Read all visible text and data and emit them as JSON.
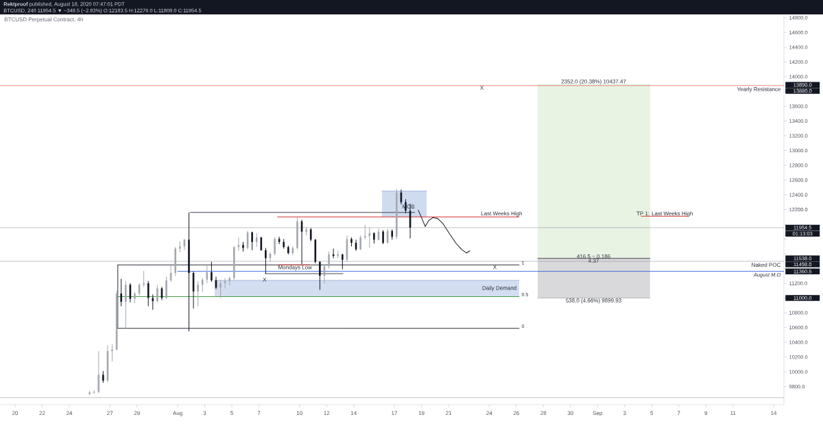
{
  "chart_data": {
    "type": "candlestick",
    "title": "BTCUSD Perpetual Contract, 4h",
    "subtitle": "BTCUSD, 240  11954.5 ▼ −348.5 (−2.83%) O:12183.5 H:12276.0 L:11808.0 C:11954.5",
    "x": [
      "2020-07-25T12:00",
      "2020-07-25T20:00",
      "2020-07-26T04:00",
      "2020-07-26T12:00",
      "2020-07-26T20:00",
      "2020-07-27T04:00",
      "2020-07-27T12:00",
      "2020-07-27T20:00",
      "2020-07-28T04:00",
      "2020-07-28T12:00",
      "2020-07-28T20:00",
      "2020-07-29T04:00",
      "2020-07-29T12:00",
      "2020-07-29T20:00",
      "2020-07-30T04:00",
      "2020-07-30T12:00",
      "2020-07-30T20:00",
      "2020-07-31T04:00",
      "2020-07-31T12:00",
      "2020-07-31T20:00",
      "2020-08-01T04:00",
      "2020-08-01T12:00",
      "2020-08-01T20:00",
      "2020-08-02T04:00",
      "2020-08-02T12:00",
      "2020-08-02T20:00",
      "2020-08-03T04:00",
      "2020-08-03T12:00",
      "2020-08-03T20:00",
      "2020-08-04T04:00",
      "2020-08-04T12:00",
      "2020-08-04T20:00",
      "2020-08-05T04:00",
      "2020-08-05T12:00",
      "2020-08-05T20:00",
      "2020-08-06T04:00",
      "2020-08-06T12:00",
      "2020-08-06T20:00",
      "2020-08-07T04:00",
      "2020-08-07T12:00",
      "2020-08-07T20:00",
      "2020-08-08T04:00",
      "2020-08-08T12:00",
      "2020-08-08T20:00",
      "2020-08-09T04:00",
      "2020-08-09T12:00",
      "2020-08-09T20:00",
      "2020-08-10T04:00",
      "2020-08-10T12:00",
      "2020-08-10T20:00",
      "2020-08-11T04:00",
      "2020-08-11T12:00",
      "2020-08-11T20:00",
      "2020-08-12T04:00",
      "2020-08-12T12:00",
      "2020-08-12T20:00",
      "2020-08-13T04:00",
      "2020-08-13T12:00",
      "2020-08-13T20:00",
      "2020-08-14T04:00",
      "2020-08-14T12:00",
      "2020-08-14T20:00",
      "2020-08-15T04:00",
      "2020-08-15T12:00",
      "2020-08-15T20:00",
      "2020-08-16T04:00",
      "2020-08-16T12:00",
      "2020-08-16T20:00",
      "2020-08-17T04:00",
      "2020-08-17T12:00",
      "2020-08-17T20:00",
      "2020-08-18T04:00"
    ],
    "ohlc": [
      [
        9700,
        9740,
        9680,
        9720
      ],
      [
        9720,
        9750,
        9700,
        9730
      ],
      [
        9730,
        10280,
        9710,
        9960
      ],
      [
        9960,
        10010,
        9850,
        9880
      ],
      [
        9880,
        10360,
        9860,
        10280
      ],
      [
        10280,
        10370,
        10140,
        10300
      ],
      [
        10300,
        11100,
        10290,
        11060
      ],
      [
        11060,
        11260,
        10890,
        10950
      ],
      [
        10950,
        11230,
        10590,
        11180
      ],
      [
        11180,
        11200,
        10940,
        10990
      ],
      [
        10990,
        11080,
        10930,
        11060
      ],
      [
        11060,
        11200,
        11030,
        11180
      ],
      [
        11180,
        11370,
        11150,
        11200
      ],
      [
        11200,
        11230,
        10890,
        11000
      ],
      [
        11000,
        11050,
        10840,
        10960
      ],
      [
        10960,
        11180,
        10940,
        11130
      ],
      [
        11130,
        11150,
        10970,
        11000
      ],
      [
        11000,
        11290,
        10990,
        11240
      ],
      [
        11240,
        11460,
        11220,
        11340
      ],
      [
        11340,
        11690,
        11300,
        11670
      ],
      [
        11670,
        11770,
        11620,
        11700
      ],
      [
        11700,
        11800,
        11650,
        11790
      ],
      [
        11790,
        12160,
        10550,
        11340
      ],
      [
        11340,
        11360,
        10860,
        11090
      ],
      [
        11090,
        11230,
        10890,
        11180
      ],
      [
        11180,
        11270,
        11080,
        11250
      ],
      [
        11250,
        11460,
        11200,
        11350
      ],
      [
        11350,
        11490,
        11220,
        11240
      ],
      [
        11240,
        11290,
        11120,
        11140
      ],
      [
        11140,
        11240,
        11000,
        11200
      ],
      [
        11200,
        11270,
        11130,
        11230
      ],
      [
        11230,
        11290,
        11170,
        11270
      ],
      [
        11270,
        11700,
        11250,
        11690
      ],
      [
        11690,
        11820,
        11640,
        11720
      ],
      [
        11720,
        11760,
        11630,
        11680
      ],
      [
        11680,
        11910,
        11660,
        11890
      ],
      [
        11890,
        11900,
        11650,
        11760
      ],
      [
        11760,
        11880,
        11690,
        11820
      ],
      [
        11820,
        11830,
        11640,
        11650
      ],
      [
        11650,
        11680,
        11330,
        11540
      ],
      [
        11540,
        11620,
        11490,
        11600
      ],
      [
        11600,
        11820,
        11580,
        11800
      ],
      [
        11800,
        11830,
        11730,
        11760
      ],
      [
        11760,
        11800,
        11670,
        11690
      ],
      [
        11690,
        11710,
        11590,
        11610
      ],
      [
        11610,
        11700,
        11580,
        11680
      ],
      [
        11680,
        12110,
        11660,
        12040
      ],
      [
        12040,
        12060,
        11460,
        11900
      ],
      [
        11900,
        11960,
        11850,
        11930
      ],
      [
        11930,
        11950,
        11770,
        11790
      ],
      [
        11790,
        11800,
        11470,
        11490
      ],
      [
        11490,
        11500,
        11110,
        11300
      ],
      [
        11300,
        11450,
        11200,
        11430
      ],
      [
        11430,
        11630,
        11400,
        11590
      ],
      [
        11590,
        11670,
        11540,
        11570
      ],
      [
        11570,
        11640,
        11540,
        11590
      ],
      [
        11590,
        11600,
        11390,
        11520
      ],
      [
        11520,
        11850,
        11490,
        11800
      ],
      [
        11800,
        11820,
        11700,
        11750
      ],
      [
        11750,
        11790,
        11640,
        11660
      ],
      [
        11660,
        11850,
        11650,
        11820
      ],
      [
        11820,
        11990,
        11800,
        11840
      ],
      [
        11840,
        11960,
        11680,
        11880
      ],
      [
        11880,
        11890,
        11740,
        11790
      ],
      [
        11790,
        11940,
        11780,
        11900
      ],
      [
        11900,
        11920,
        11730,
        11750
      ],
      [
        11750,
        11940,
        11740,
        11910
      ],
      [
        11910,
        11930,
        11790,
        11830
      ],
      [
        11830,
        12480,
        11800,
        12430
      ],
      [
        12430,
        12470,
        12270,
        12300
      ],
      [
        12300,
        12340,
        12150,
        12183.5
      ],
      [
        12183.5,
        12276.0,
        11808.0,
        11954.5
      ]
    ],
    "colors": [
      "#a5a8b0",
      "#a5a8b0",
      "#a5a8b0",
      "#131722",
      "#a5a8b0",
      "#a5a8b0",
      "#a5a8b0",
      "#131722",
      "#a5a8b0",
      "#131722",
      "#a5a8b0",
      "#a5a8b0",
      "#a5a8b0",
      "#131722",
      "#131722",
      "#a5a8b0",
      "#131722",
      "#a5a8b0",
      "#a5a8b0",
      "#a5a8b0",
      "#a5a8b0",
      "#a5a8b0",
      "#131722",
      "#131722",
      "#a5a8b0",
      "#a5a8b0",
      "#a5a8b0",
      "#131722",
      "#131722",
      "#a5a8b0",
      "#a5a8b0",
      "#a5a8b0",
      "#a5a8b0",
      "#a5a8b0",
      "#131722",
      "#a5a8b0",
      "#131722",
      "#a5a8b0",
      "#131722",
      "#131722",
      "#a5a8b0",
      "#a5a8b0",
      "#131722",
      "#131722",
      "#131722",
      "#a5a8b0",
      "#a5a8b0",
      "#131722",
      "#a5a8b0",
      "#131722",
      "#131722",
      "#131722",
      "#a5a8b0",
      "#a5a8b0",
      "#131722",
      "#a5a8b0",
      "#131722",
      "#a5a8b0",
      "#131722",
      "#131722",
      "#a5a8b0",
      "#a5a8b0",
      "#a5a8b0",
      "#131722",
      "#a5a8b0",
      "#131722",
      "#a5a8b0",
      "#131722",
      "#a5a8b0",
      "#131722",
      "#131722",
      "#131722"
    ],
    "series": [
      {
        "type": "line",
        "name": "Daily Demand",
        "x": [
          "2020-08-03T17:30",
          "2020-08-26T05:00"
        ],
        "values": [
          11240,
          11240
        ],
        "lower": [
          11020,
          11020
        ],
        "upper": [
          11240,
          11240
        ],
        "color": "#81a1d4"
      },
      {
        "type": "line",
        "x": [
          "2020-08-16T02:00",
          "2020-08-19T09:00"
        ],
        "values": [
          12450,
          12450
        ],
        "lower": [
          12100,
          12100
        ],
        "upper": [
          12450,
          12450
        ],
        "color": "#7698d1"
      },
      {
        "type": "line",
        "x": [
          "2020-08-27T14:00",
          "2020-09-04T21:00"
        ],
        "values": [
          13890,
          13890
        ],
        "lower": [
          11538,
          11538
        ],
        "upper": [
          13890,
          13890
        ],
        "color": "#bdddb2"
      },
      {
        "type": "line",
        "x": [
          "2020-08-27T14:00",
          "2020-09-04T21:00"
        ],
        "values": [
          11000,
          11000
        ],
        "lower": [
          11000,
          11000
        ],
        "upper": [
          11538,
          11538
        ],
        "color": "#929298"
      },
      {
        "type": "line",
        "name": "1",
        "x": [
          "2020-07-27T14:00",
          "2020-08-26T05:00"
        ],
        "values": [
          11450,
          11450
        ],
        "color": "#2a2e39"
      },
      {
        "type": "line",
        "name": "0.5",
        "x": [
          "2020-07-27T14:00",
          "2020-08-26T05:00"
        ],
        "values": [
          11020,
          11020
        ],
        "color": "#43a047"
      },
      {
        "type": "line",
        "name": "0",
        "x": [
          "2020-07-27T14:00",
          "2020-08-26T05:00"
        ],
        "values": [
          10590,
          10590
        ],
        "color": "#2a2e39"
      },
      {
        "type": "line",
        "x": [
          "2020-07-27T14:00",
          "2020-07-27T14:00"
        ],
        "values": [
          10590,
          11450
        ],
        "color": "#2a2e39"
      },
      {
        "type": "line",
        "x": [
          "2020-08-01T22:00",
          "2020-08-18T12:00"
        ],
        "values": [
          12160,
          12160
        ],
        "color": "#434651"
      },
      {
        "type": "line",
        "x": [
          "2020-08-08T09:00",
          "2020-08-26T05:00"
        ],
        "values": [
          12100,
          12100
        ],
        "color": "#d32f2f"
      },
      {
        "type": "line",
        "x": [
          "2020-09-04T05:30",
          "2020-09-07T16:00"
        ],
        "values": [
          12110,
          12110
        ],
        "color": "#d32f2f"
      },
      {
        "type": "line",
        "x": [
          "2020-08-08T11:00",
          "2020-08-10T18:00"
        ],
        "values": [
          11450,
          11450
        ],
        "color": "#d32f2f"
      },
      {
        "type": "line",
        "x": [
          "2020-08-07T11:00",
          "2020-08-13T05:00"
        ],
        "values": [
          11330,
          11330
        ],
        "color": "#434651"
      },
      {
        "type": "line",
        "name": "August M.O",
        "x": [
          "2020-08-01T00:00",
          "2020-09-14T18:15"
        ],
        "values": [
          11360.5,
          11360.5
        ],
        "color": "#2a5bd7"
      },
      {
        "type": "line",
        "x": [
          "2020-08-27T14:00",
          "2020-09-04T21:00"
        ],
        "values": [
          11538,
          11538
        ],
        "color": "#434651"
      },
      {
        "type": "line",
        "x": [
          "2020-08-18T18:30",
          "2020-08-19T00:40",
          "2020-08-19T06:40",
          "2020-08-19T12:45",
          "2020-08-19T20:00",
          "2020-08-20T04:30",
          "2020-08-20T14:00",
          "2020-08-21T01:00",
          "2020-08-21T13:30",
          "2020-08-21T23:00",
          "2020-08-22T07:40",
          "2020-08-22T13:40"
        ],
        "values": [
          12190,
          12080,
          11970,
          12050,
          12090,
          12080,
          12010,
          11880,
          11740,
          11660,
          11610,
          11640
        ],
        "color": "#131722"
      }
    ],
    "ref_lines": [
      {
        "axis": "y",
        "value": 13880,
        "label": "Yearly Resistance",
        "color": "#e53935"
      },
      {
        "axis": "y",
        "value": 11954.5,
        "color": "#9598a1"
      },
      {
        "axis": "y",
        "value": 11498,
        "label": "Naked POC",
        "color": "#9598a1"
      },
      {
        "axis": "y",
        "value": 9650,
        "color": "#9598a1"
      }
    ],
    "annotations": [
      "**Rektproof** published, August 18, 2020 07:47:01 PDT",
      {
        "text": "Last Weeks High",
        "x": "2020-08-24T22:00",
        "y": 12140
      },
      {
        "text": "Mondays Low",
        "x": "2020-08-09T16:00",
        "y": 11410
      },
      {
        "text": "MOB",
        "x": "2020-08-18T01:00",
        "y": 12240
      },
      {
        "text": "X",
        "x": "2020-08-07T10:00",
        "y": 11250
      },
      {
        "text": "X",
        "x": "2020-08-23T11:00",
        "y": 13850
      },
      {
        "text": "X",
        "x": "2020-08-24T10:00",
        "y": 11420
      },
      {
        "text": "TP 1: Last Weeks High",
        "x": "2020-09-05T23:00",
        "y": 12140
      },
      {
        "text": "2352.0 (20.38%) 10437.47",
        "x": "2020-08-31T17:00",
        "y": 13930
      },
      {
        "text": "416.5 ~ 0.186",
        "x": "2020-08-31T17:00",
        "y": 11565
      },
      {
        "text": "4.37",
        "x": "2020-08-31T17:00",
        "y": 11505
      },
      {
        "text": "538.0 (4.66%) 9899.93",
        "x": "2020-08-31T17:00",
        "y": 10960
      },
      {
        "text": "13880.0",
        "x": "2020-09-14T18:15",
        "y": 13880
      },
      {
        "text": "01:13:03",
        "x": "2020-09-14T18:15",
        "y": 11954.5
      },
      {
        "text": "11498.0",
        "x": "2020-09-14T18:15",
        "y": 11498
      }
    ],
    "xlim": [
      "2020-07-18T21:15",
      "2020-09-14T18:15"
    ],
    "ylim": [
      9555,
      14845
    ],
    "y2lim": [
      9555,
      14845
    ],
    "xticks": [
      {
        "value": "2020-07-20",
        "label": "20"
      },
      {
        "value": "2020-07-22",
        "label": "22"
      },
      {
        "value": "2020-07-24",
        "label": "24"
      },
      {
        "value": "2020-07-27",
        "label": "27"
      },
      {
        "value": "2020-07-29",
        "label": "29"
      },
      {
        "value": "2020-08-01",
        "label": "Aug"
      },
      {
        "value": "2020-08-03",
        "label": "3"
      },
      {
        "value": "2020-08-05",
        "label": "5"
      },
      {
        "value": "2020-08-07",
        "label": "7"
      },
      {
        "value": "2020-08-10",
        "label": "10"
      },
      {
        "value": "2020-08-12",
        "label": "12"
      },
      {
        "value": "2020-08-14",
        "label": "14"
      },
      {
        "value": "2020-08-17",
        "label": "17"
      },
      {
        "value": "2020-08-19",
        "label": "19"
      },
      {
        "value": "2020-08-21",
        "label": "21"
      },
      {
        "value": "2020-08-24",
        "label": "24"
      },
      {
        "value": "2020-08-26",
        "label": "26"
      },
      {
        "value": "2020-08-28",
        "label": "28"
      },
      {
        "value": "2020-08-30",
        "label": "30"
      },
      {
        "value": "2020-09-01",
        "label": "Sep"
      },
      {
        "value": "2020-09-03",
        "label": "3"
      },
      {
        "value": "2020-09-05",
        "label": "5"
      },
      {
        "value": "2020-09-07",
        "label": "7"
      },
      {
        "value": "2020-09-09",
        "label": "9"
      },
      {
        "value": "2020-09-11",
        "label": "11"
      },
      {
        "value": "2020-09-14",
        "label": "14"
      }
    ],
    "yticks": [
      {
        "value": 9800,
        "label": "9800.0"
      },
      {
        "value": 10000,
        "label": "10000.0"
      },
      {
        "value": 10200,
        "label": "10200.0"
      },
      {
        "value": 10400,
        "label": "10400.0"
      },
      {
        "value": 10600,
        "label": "10600.0"
      },
      {
        "value": 10800,
        "label": "10800.0"
      },
      {
        "value": 11000,
        "label": null
      },
      {
        "value": 11200,
        "label": "11200.0"
      },
      {
        "value": 11400,
        "label": null
      },
      {
        "value": 11600,
        "label": null
      },
      {
        "value": 11800,
        "label": null
      },
      {
        "value": 12000,
        "label": null
      },
      {
        "value": 12200,
        "label": "12200.0"
      },
      {
        "value": 12400,
        "label": "12400.0"
      },
      {
        "value": 12600,
        "label": "12600.0"
      },
      {
        "value": 12800,
        "label": "12800.0"
      },
      {
        "value": 13000,
        "label": "13000.0"
      },
      {
        "value": 13200,
        "label": "13200.0"
      },
      {
        "value": 13400,
        "label": "13400.0"
      },
      {
        "value": 13600,
        "label": "13600.0"
      },
      {
        "value": 13800,
        "label": null
      },
      {
        "value": 14000,
        "label": "14000.0"
      },
      {
        "value": 14200,
        "label": "14200.0"
      },
      {
        "value": 14400,
        "label": "14400.0"
      },
      {
        "value": 14600,
        "label": "14600.0"
      },
      {
        "value": 14800,
        "label": "14800.0"
      }
    ],
    "y2ticks": [
      {
        "value": 13890,
        "label": "13890.0"
      },
      {
        "value": 11954.5,
        "label": "11954.5"
      },
      {
        "value": 11538,
        "label": "11538.0"
      },
      {
        "value": 11360.5,
        "label": "11360.5"
      },
      {
        "value": 11000,
        "label": "11000.0"
      }
    ]
  }
}
